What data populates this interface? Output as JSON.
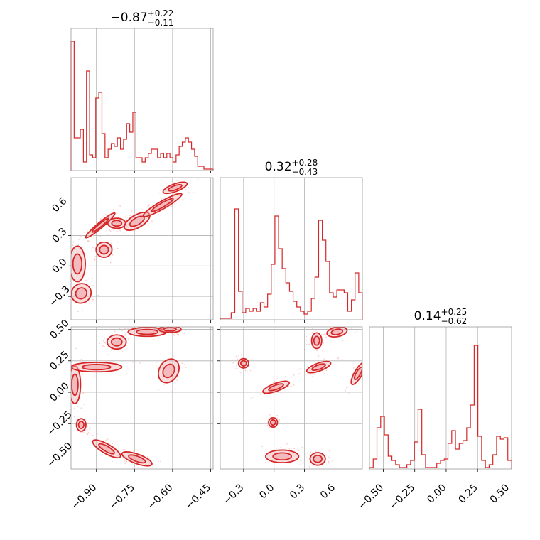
{
  "colors": {
    "series": "#d62728",
    "fill": "#f2b3b5",
    "scatter": "#f7c6c7",
    "frame": "#999999",
    "grid": "#b0b0b0"
  },
  "chart_data": {
    "type": "corner",
    "grid": true,
    "legend": "none",
    "parameters": [
      {
        "name": "",
        "range": [
          -1.0,
          -0.44
        ],
        "ticks": [
          -0.9,
          -0.75,
          -0.6,
          -0.45
        ],
        "tick_labels": [
          "−0.90",
          "−0.75",
          "−0.60",
          "−0.45"
        ],
        "title": {
          "value": "−0.87",
          "plus": "+0.22",
          "minus": "−0.11"
        },
        "histogram": [
          0.91,
          0.23,
          0.23,
          0.29,
          0.06,
          0.7,
          0.11,
          0.09,
          0.51,
          0.55,
          0.26,
          0.09,
          0.15,
          0.19,
          0.17,
          0.23,
          0.15,
          0.22,
          0.33,
          0.27,
          0.41,
          0.09,
          0.09,
          0.06,
          0.09,
          0.12,
          0.15,
          0.15,
          0.09,
          0.12,
          0.09,
          0.12,
          0.09,
          0.06,
          0.11,
          0.17,
          0.2,
          0.23,
          0.2,
          0.15,
          0.1,
          0.03,
          0.03,
          0.01,
          0.01,
          0.01
        ]
      },
      {
        "name": "",
        "range": [
          -0.53,
          0.87
        ],
        "ticks": [
          -0.3,
          0.0,
          0.3,
          0.6
        ],
        "tick_labels": [
          "−0.3",
          "0.0",
          "0.3",
          "0.6"
        ],
        "title": {
          "value": "0.32",
          "plus": "+0.28",
          "minus": "−0.43"
        },
        "histogram": [
          0.01,
          0.01,
          0.01,
          0.05,
          0.78,
          0.2,
          0.05,
          0.08,
          0.06,
          0.08,
          0.06,
          0.12,
          0.09,
          0.18,
          0.39,
          0.73,
          0.5,
          0.36,
          0.26,
          0.2,
          0.13,
          0.09,
          0.06,
          0.04,
          0.06,
          0.15,
          0.3,
          0.7,
          0.56,
          0.41,
          0.19,
          0.16,
          0.21,
          0.21,
          0.19,
          0.06,
          0.14,
          0.33,
          0.19
        ]
      },
      {
        "name": "",
        "range": [
          -0.61,
          0.52
        ],
        "ticks": [
          -0.5,
          -0.25,
          0.0,
          0.25,
          0.5
        ],
        "tick_labels": [
          "−0.50",
          "−0.25",
          "0.00",
          "0.25",
          "0.50"
        ],
        "title": {
          "value": "0.14",
          "plus": "+0.25",
          "minus": "−0.62"
        },
        "histogram": [
          0.01,
          0.07,
          0.29,
          0.37,
          0.24,
          0.09,
          0.06,
          0.03,
          0.01,
          0.01,
          0.03,
          0.06,
          0.19,
          0.42,
          0.1,
          0.01,
          0.01,
          0.01,
          0.04,
          0.06,
          0.07,
          0.18,
          0.27,
          0.14,
          0.18,
          0.2,
          0.29,
          0.45,
          0.87,
          0.23,
          0.06,
          0.01,
          0.03,
          0.1,
          0.23,
          0.21,
          0.22,
          0.06
        ]
      }
    ],
    "contours": [
      {
        "x_param": 0,
        "y_param": 1,
        "blobs": [
          {
            "cx": -0.975,
            "cy": 0.02,
            "rx": 0.025,
            "ry": 0.14,
            "angle": 0
          },
          {
            "cx": -0.96,
            "cy": -0.27,
            "rx": 0.03,
            "ry": 0.08,
            "angle": -50
          },
          {
            "cx": -0.885,
            "cy": 0.4,
            "rx": 0.06,
            "ry": 0.022,
            "angle": 40
          },
          {
            "cx": -0.82,
            "cy": 0.42,
            "rx": 0.028,
            "ry": 0.04,
            "angle": 0
          },
          {
            "cx": -0.87,
            "cy": 0.16,
            "rx": 0.025,
            "ry": 0.06,
            "angle": 0
          },
          {
            "cx": -0.74,
            "cy": 0.44,
            "rx": 0.045,
            "ry": 0.05,
            "angle": 30
          },
          {
            "cx": -0.64,
            "cy": 0.6,
            "rx": 0.07,
            "ry": 0.03,
            "angle": 30
          },
          {
            "cx": -0.59,
            "cy": 0.77,
            "rx": 0.04,
            "ry": 0.03,
            "angle": 20
          }
        ]
      },
      {
        "x_param": 0,
        "y_param": 2,
        "blobs": [
          {
            "cx": -0.985,
            "cy": 0.06,
            "rx": 0.018,
            "ry": 0.12,
            "angle": 0
          },
          {
            "cx": -0.96,
            "cy": -0.26,
            "rx": 0.015,
            "ry": 0.04,
            "angle": 0
          },
          {
            "cx": -0.9,
            "cy": 0.2,
            "rx": 0.08,
            "ry": 0.03,
            "angle": 0
          },
          {
            "cx": -0.82,
            "cy": 0.4,
            "rx": 0.03,
            "ry": 0.045,
            "angle": 0
          },
          {
            "cx": -0.7,
            "cy": 0.48,
            "rx": 0.06,
            "ry": 0.028,
            "angle": 0
          },
          {
            "cx": -0.61,
            "cy": 0.5,
            "rx": 0.035,
            "ry": 0.02,
            "angle": 0
          },
          {
            "cx": -0.615,
            "cy": 0.17,
            "rx": 0.03,
            "ry": 0.08,
            "angle": -30
          },
          {
            "cx": -0.86,
            "cy": -0.45,
            "rx": 0.05,
            "ry": 0.03,
            "angle": -30
          },
          {
            "cx": -0.74,
            "cy": -0.53,
            "rx": 0.05,
            "ry": 0.03,
            "angle": -20
          }
        ]
      },
      {
        "x_param": 1,
        "y_param": 2,
        "blobs": [
          {
            "cx": -0.3,
            "cy": 0.23,
            "rx": 0.04,
            "ry": 0.03,
            "angle": 0
          },
          {
            "cx": 0.02,
            "cy": 0.04,
            "rx": 0.11,
            "ry": 0.025,
            "angle": 20
          },
          {
            "cx": -0.01,
            "cy": -0.24,
            "rx": 0.035,
            "ry": 0.03,
            "angle": 0
          },
          {
            "cx": 0.08,
            "cy": -0.51,
            "rx": 0.13,
            "ry": 0.04,
            "angle": 0
          },
          {
            "cx": 0.43,
            "cy": -0.53,
            "rx": 0.06,
            "ry": 0.04,
            "angle": 0
          },
          {
            "cx": 0.42,
            "cy": 0.41,
            "rx": 0.04,
            "ry": 0.05,
            "angle": 0
          },
          {
            "cx": 0.44,
            "cy": 0.2,
            "rx": 0.1,
            "ry": 0.025,
            "angle": 20
          },
          {
            "cx": 0.62,
            "cy": 0.48,
            "rx": 0.08,
            "ry": 0.03,
            "angle": 10
          },
          {
            "cx": 0.83,
            "cy": 0.15,
            "rx": 0.03,
            "ry": 0.08,
            "angle": -30
          }
        ]
      }
    ]
  }
}
